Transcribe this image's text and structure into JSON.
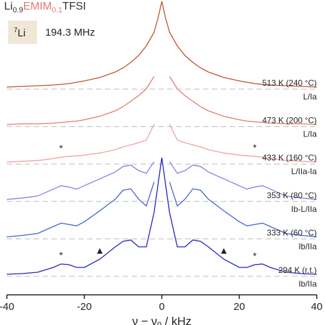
{
  "chart_data": {
    "type": "line",
    "title_parts": [
      "Li",
      "0.9",
      "EMIM",
      "0.1",
      "TFSI"
    ],
    "title_colors": [
      "#333333",
      "#333333",
      "#e07a70",
      "#e07a70",
      "#333333"
    ],
    "nucleus": {
      "mass": "7",
      "symbol": "Li"
    },
    "frequency": "194.3 MHz",
    "xlabel_parts": [
      "ν − ν",
      "0",
      " / kHz"
    ],
    "xlim": [
      -40,
      40
    ],
    "xticks": [
      -40,
      -20,
      0,
      20,
      40
    ],
    "x": [
      -40,
      -36,
      -32,
      -28,
      -26,
      -24,
      -22,
      -20,
      -16,
      -12,
      -10,
      -8,
      -6,
      -4,
      -2,
      -1,
      0,
      1,
      2,
      4,
      6,
      8,
      10,
      12,
      16,
      20,
      22,
      24,
      26,
      28,
      32,
      36,
      40
    ],
    "series": [
      {
        "name": "513 K (240 °C)",
        "assignment": "L/Ia",
        "color": "#c0502a",
        "values": [
          0,
          1,
          2,
          3,
          4,
          5,
          7,
          9,
          14,
          22,
          28,
          36,
          46,
          60,
          80,
          100,
          125,
          100,
          80,
          60,
          46,
          36,
          28,
          22,
          14,
          9,
          7,
          5,
          4,
          3,
          2,
          1,
          0
        ]
      },
      {
        "name": "473 K (200 °C)",
        "assignment": "L/Ia",
        "color": "#e07a70",
        "values": [
          0,
          1,
          1,
          2,
          3,
          4,
          5,
          7,
          12,
          20,
          26,
          34,
          42,
          52,
          70,
          null,
          null,
          null,
          70,
          52,
          42,
          34,
          26,
          20,
          12,
          7,
          5,
          4,
          3,
          2,
          1,
          1,
          0
        ]
      },
      {
        "name": "433 K (160 °C)",
        "assignment": "L/IIa-Ia",
        "color": "#f0a0a0",
        "values": [
          0,
          1,
          2,
          5,
          7,
          8,
          9,
          10,
          13,
          18,
          22,
          25,
          28,
          32,
          55,
          null,
          null,
          null,
          55,
          32,
          28,
          25,
          22,
          18,
          13,
          10,
          9,
          8,
          7,
          5,
          2,
          1,
          0
        ]
      },
      {
        "name": "353 K (80 °C)",
        "assignment": "Ib-L/IIa",
        "color": "#8080e0",
        "values": [
          0,
          2,
          5,
          15,
          20,
          18,
          15,
          20,
          30,
          40,
          48,
          50,
          42,
          38,
          55,
          null,
          null,
          null,
          55,
          38,
          42,
          50,
          48,
          40,
          30,
          20,
          15,
          18,
          20,
          15,
          5,
          2,
          0
        ]
      },
      {
        "name": "333 K (60 °C)",
        "assignment": "Ib/IIa",
        "color": "#4060d0",
        "values": [
          0,
          2,
          5,
          15,
          20,
          18,
          16,
          22,
          38,
          55,
          68,
          70,
          55,
          45,
          80,
          null,
          null,
          null,
          80,
          45,
          55,
          70,
          68,
          55,
          38,
          22,
          16,
          18,
          20,
          15,
          5,
          2,
          0
        ]
      },
      {
        "name": "294 K (r.t.)",
        "assignment": "Ib/IIa",
        "color": "#2020c0",
        "values": [
          0,
          1,
          3,
          10,
          15,
          14,
          10,
          10,
          22,
          40,
          48,
          50,
          40,
          40,
          90,
          130,
          170,
          130,
          90,
          40,
          40,
          50,
          48,
          40,
          22,
          10,
          10,
          14,
          15,
          10,
          3,
          1,
          0
        ]
      }
    ],
    "annotations": [
      {
        "text": "*",
        "x": -26,
        "series": 2
      },
      {
        "text": "*",
        "x": 24,
        "series": 2
      },
      {
        "text": "*",
        "x": -26,
        "series": 5
      },
      {
        "text": "*",
        "x": 24,
        "series": 5
      },
      {
        "text": "▲",
        "x": -16,
        "series": 5
      },
      {
        "text": "▲",
        "x": 16,
        "series": 5
      }
    ]
  }
}
